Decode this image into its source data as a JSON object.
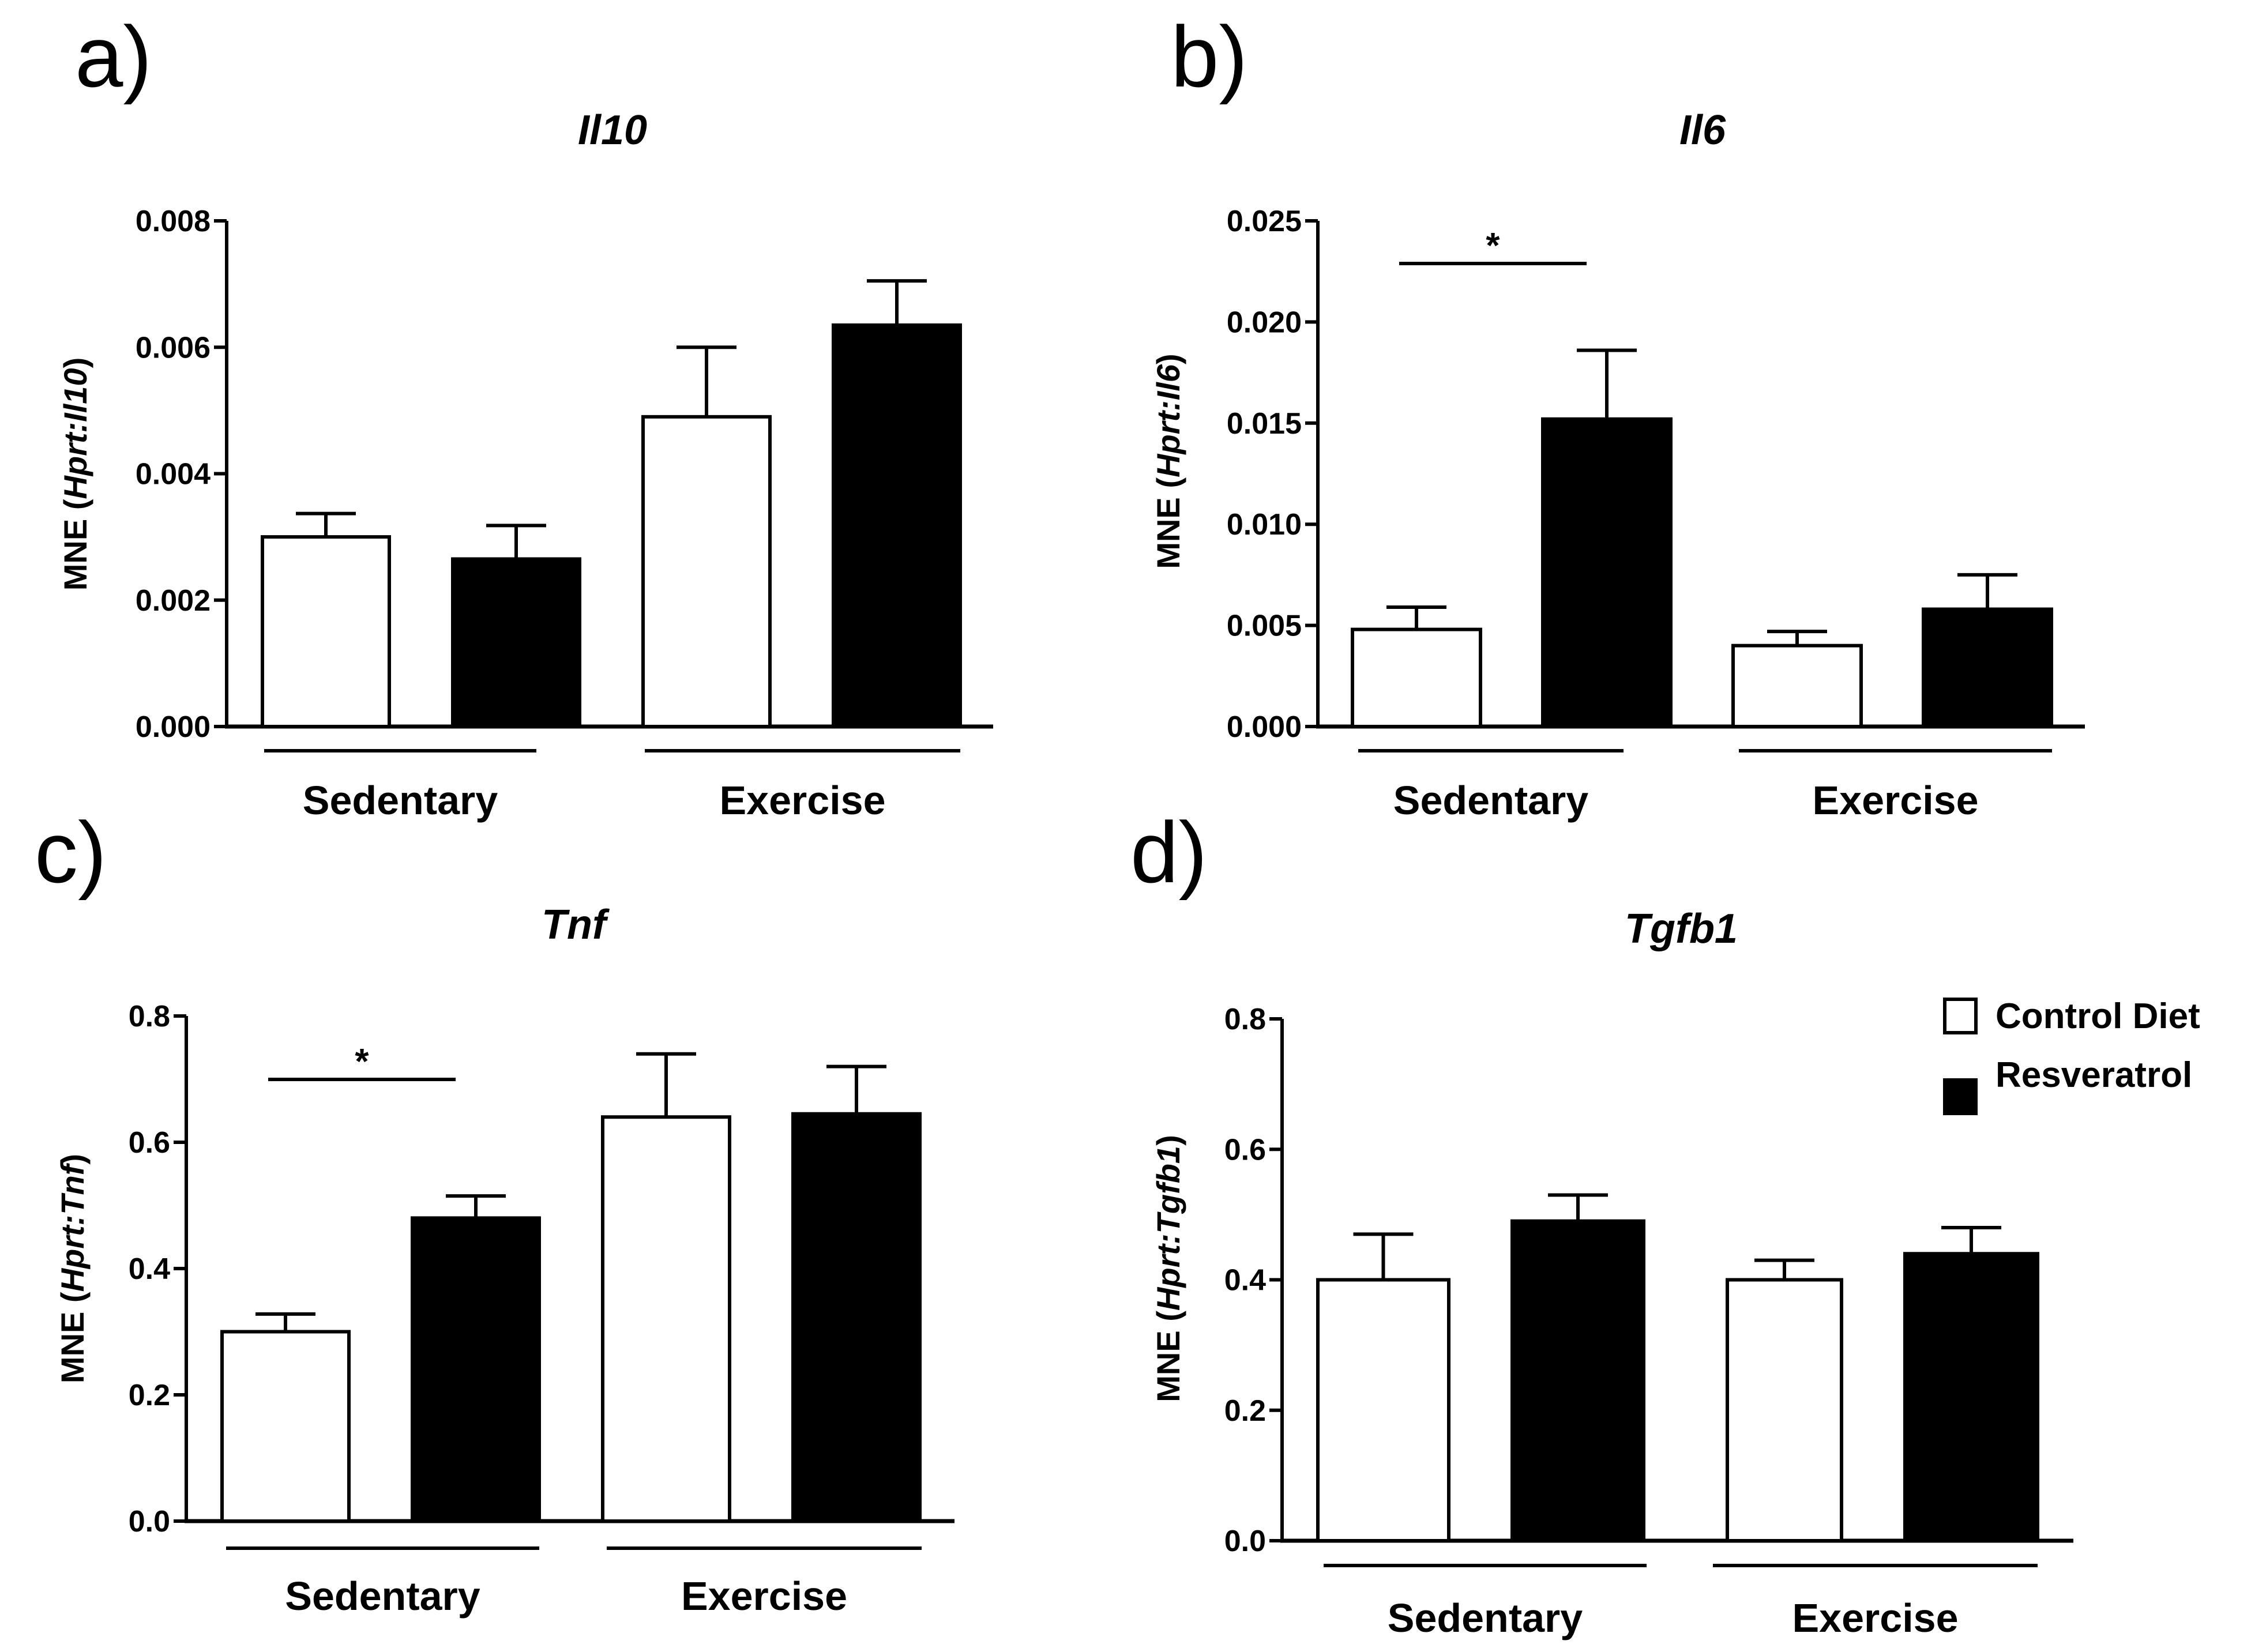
{
  "colors": {
    "control": "#ffffff",
    "resveratrol": "#000000",
    "stroke": "#000000"
  },
  "legend": [
    {
      "name": "Control Diet",
      "color": "#ffffff"
    },
    {
      "name": "Resveratrol",
      "color": "#000000"
    }
  ],
  "chart_data": [
    {
      "panel": "a)",
      "type": "bar",
      "title": "Il10",
      "ylabel": {
        "prefix": "MNE (",
        "italic": "Hprt:Il10",
        "suffix": ")"
      },
      "ylim": [
        0,
        0.008
      ],
      "yticks": [
        "0.000",
        "0.002",
        "0.004",
        "0.006",
        "0.008"
      ],
      "groups": [
        "Sedentary",
        "Exercise"
      ],
      "series": [
        {
          "name": "Control Diet",
          "values": [
            0.003,
            0.0049
          ],
          "errors": [
            0.00037,
            0.0011
          ]
        },
        {
          "name": "Resveratrol",
          "values": [
            0.00265,
            0.00635
          ],
          "errors": [
            0.00053,
            0.0007
          ]
        }
      ],
      "significance": []
    },
    {
      "panel": "b)",
      "type": "bar",
      "title": "Il6",
      "ylabel": {
        "prefix": "MNE (",
        "italic": "Hprt:Il6",
        "suffix": ")"
      },
      "ylim": [
        0,
        0.025
      ],
      "yticks": [
        "0.000",
        "0.005",
        "0.010",
        "0.015",
        "0.020",
        "0.025"
      ],
      "groups": [
        "Sedentary",
        "Exercise"
      ],
      "series": [
        {
          "name": "Control Diet",
          "values": [
            0.0048,
            0.004
          ],
          "errors": [
            0.0011,
            0.0007
          ]
        },
        {
          "name": "Resveratrol",
          "values": [
            0.0152,
            0.0058
          ],
          "errors": [
            0.0034,
            0.0017
          ]
        }
      ],
      "significance": [
        {
          "label": "*",
          "group": 0
        }
      ]
    },
    {
      "panel": "c)",
      "type": "bar",
      "title": "Tnf",
      "ylabel": {
        "prefix": "MNE (",
        "italic": "Hprt:Tnf",
        "suffix": ")"
      },
      "ylim": [
        0,
        0.8
      ],
      "yticks": [
        "0.0",
        "0.2",
        "0.4",
        "0.6",
        "0.8"
      ],
      "groups": [
        "Sedentary",
        "Exercise"
      ],
      "series": [
        {
          "name": "Control Diet",
          "values": [
            0.3,
            0.64
          ],
          "errors": [
            0.028,
            0.1
          ]
        },
        {
          "name": "Resveratrol",
          "values": [
            0.48,
            0.645
          ],
          "errors": [
            0.035,
            0.075
          ]
        }
      ],
      "significance": [
        {
          "label": "*",
          "group": 0
        }
      ]
    },
    {
      "panel": "d)",
      "type": "bar",
      "title": "Tgfb1",
      "ylabel": {
        "prefix": "MNE (",
        "italic": "Hprt:Tgfb1",
        "suffix": ")"
      },
      "ylim": [
        0,
        0.8
      ],
      "yticks": [
        "0.0",
        "0.2",
        "0.4",
        "0.6",
        "0.8"
      ],
      "groups": [
        "Sedentary",
        "Exercise"
      ],
      "series": [
        {
          "name": "Control Diet",
          "values": [
            0.4,
            0.4
          ],
          "errors": [
            0.07,
            0.03
          ]
        },
        {
          "name": "Resveratrol",
          "values": [
            0.49,
            0.44
          ],
          "errors": [
            0.04,
            0.04
          ]
        }
      ],
      "significance": []
    }
  ]
}
